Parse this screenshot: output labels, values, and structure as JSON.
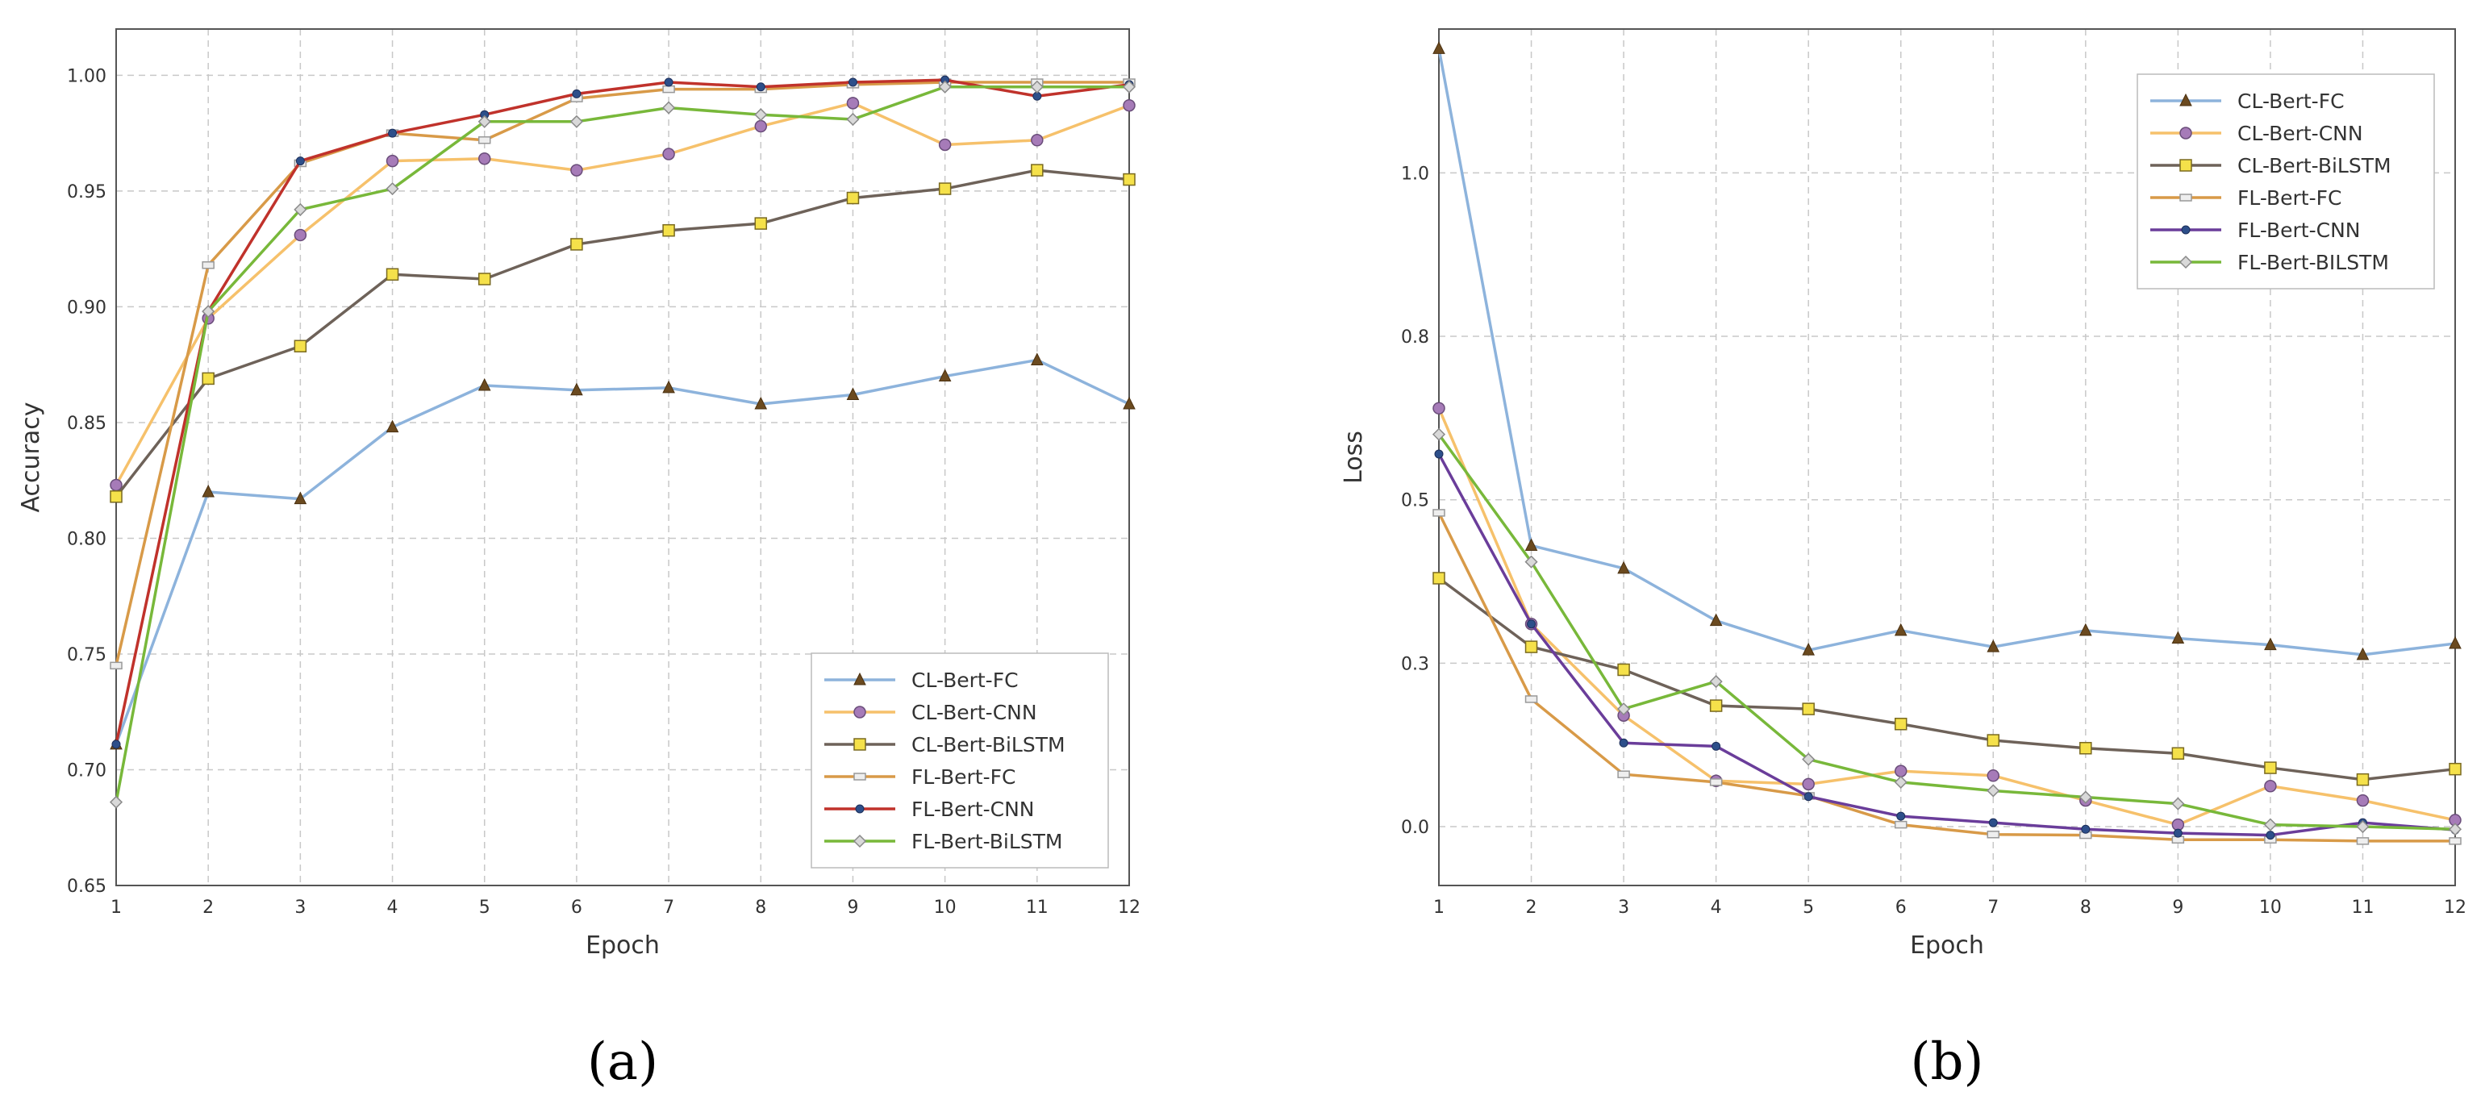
{
  "chart_data": [
    {
      "type": "line",
      "panel_label": "(a)",
      "xlabel": "Epoch",
      "ylabel": "Accuracy",
      "x": [
        1,
        2,
        3,
        4,
        5,
        6,
        7,
        8,
        9,
        10,
        11,
        12
      ],
      "xticks": [
        "1",
        "2",
        "3",
        "4",
        "5",
        "6",
        "7",
        "8",
        "9",
        "10",
        "11",
        "12"
      ],
      "ylim": [
        0.65,
        1.02
      ],
      "yticks": [
        "0.65",
        "0.70",
        "0.75",
        "0.80",
        "0.85",
        "0.90",
        "0.95",
        "1.00"
      ],
      "grid": true,
      "legend_position": "bottom-right",
      "series": [
        {
          "name": "CL-Bert-FC",
          "color": "#8db3dc",
          "marker": "triangle",
          "values": [
            0.711,
            0.82,
            0.817,
            0.848,
            0.866,
            0.864,
            0.865,
            0.858,
            0.862,
            0.87,
            0.877,
            0.858
          ]
        },
        {
          "name": "CL-Bert-CNN",
          "color": "#f6c16b",
          "marker": "circle",
          "values": [
            0.823,
            0.895,
            0.931,
            0.963,
            0.964,
            0.959,
            0.966,
            0.978,
            0.988,
            0.97,
            0.972,
            0.987
          ]
        },
        {
          "name": "CL-Bert-BiLSTM",
          "color": "#6e6259",
          "marker": "square",
          "values": [
            0.818,
            0.869,
            0.883,
            0.914,
            0.912,
            0.927,
            0.933,
            0.936,
            0.947,
            0.951,
            0.959,
            0.955
          ]
        },
        {
          "name": "FL-Bert-FC",
          "color": "#d89a48",
          "marker": "rect",
          "values": [
            0.745,
            0.918,
            0.962,
            0.975,
            0.972,
            0.99,
            0.994,
            0.994,
            0.996,
            0.997,
            0.997,
            0.997
          ]
        },
        {
          "name": "FL-Bert-CNN",
          "color": "#c0322b",
          "marker": "dot",
          "values": [
            0.711,
            0.898,
            0.963,
            0.975,
            0.983,
            0.992,
            0.997,
            0.995,
            0.997,
            0.998,
            0.991,
            0.996
          ]
        },
        {
          "name": "FL-Bert-BiLSTM",
          "color": "#78b83a",
          "marker": "diamond",
          "values": [
            0.686,
            0.898,
            0.942,
            0.951,
            0.98,
            0.98,
            0.986,
            0.983,
            0.981,
            0.995,
            0.995,
            0.995
          ]
        }
      ]
    },
    {
      "type": "line",
      "panel_label": "(b)",
      "xlabel": "Epoch",
      "ylabel": "Loss",
      "x": [
        1,
        2,
        3,
        4,
        5,
        6,
        7,
        8,
        9,
        10,
        11,
        12
      ],
      "xticks": [
        "1",
        "2",
        "3",
        "4",
        "5",
        "6",
        "7",
        "8",
        "9",
        "10",
        "11",
        "12"
      ],
      "ylim": [
        -0.09,
        1.22
      ],
      "yticks": [
        "0.0",
        "0.3",
        "0.5",
        "0.8",
        "1.0"
      ],
      "ytick_values": [
        0.0,
        0.25,
        0.5,
        0.75,
        1.0
      ],
      "grid": true,
      "legend_position": "top-right",
      "series": [
        {
          "name": "CL-Bert-FC",
          "color": "#8db3dc",
          "marker": "triangle",
          "values": [
            1.19,
            0.43,
            0.395,
            0.315,
            0.27,
            0.3,
            0.275,
            0.3,
            0.288,
            0.278,
            0.263,
            0.28
          ]
        },
        {
          "name": "CL-Bert-CNN",
          "color": "#f6c16b",
          "marker": "circle",
          "values": [
            0.64,
            0.31,
            0.17,
            0.07,
            0.065,
            0.085,
            0.078,
            0.04,
            0.003,
            0.062,
            0.04,
            0.01
          ]
        },
        {
          "name": "CL-Bert-BiLSTM",
          "color": "#6e6259",
          "marker": "square",
          "values": [
            0.38,
            0.275,
            0.24,
            0.185,
            0.18,
            0.157,
            0.132,
            0.12,
            0.112,
            0.09,
            0.072,
            0.088
          ]
        },
        {
          "name": "FL-Bert-FC",
          "color": "#d89a48",
          "marker": "rect",
          "values": [
            0.48,
            0.195,
            0.08,
            0.068,
            0.047,
            0.003,
            -0.012,
            -0.013,
            -0.02,
            -0.02,
            -0.022,
            -0.022
          ]
        },
        {
          "name": "FL-Bert-CNN",
          "color": "#6a3d9a",
          "marker": "dot",
          "values": [
            0.57,
            0.31,
            0.128,
            0.123,
            0.046,
            0.016,
            0.006,
            -0.004,
            -0.01,
            -0.013,
            0.006,
            -0.005
          ]
        },
        {
          "name": "FL-Bert-BILSTM",
          "color": "#78b83a",
          "marker": "diamond",
          "values": [
            0.6,
            0.405,
            0.18,
            0.222,
            0.103,
            0.068,
            0.055,
            0.045,
            0.035,
            0.003,
            0.0,
            -0.004
          ]
        }
      ]
    }
  ]
}
